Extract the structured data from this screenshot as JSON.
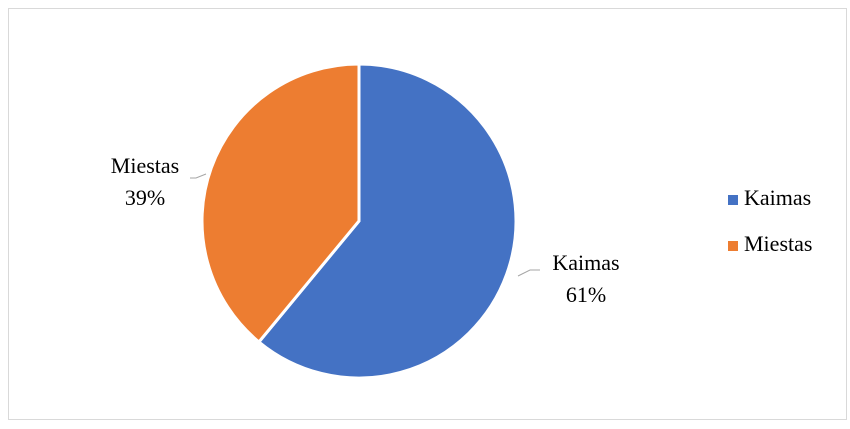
{
  "chart_data": {
    "type": "pie",
    "categories": [
      "Kaimas",
      "Miestas"
    ],
    "values": [
      61,
      39
    ],
    "value_labels": [
      "61%",
      "39%"
    ],
    "colors": [
      "#4472c4",
      "#ed7d31"
    ],
    "legend": "right"
  }
}
